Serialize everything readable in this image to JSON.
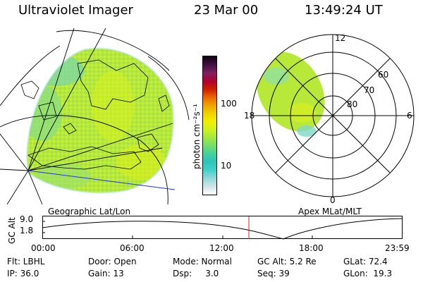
{
  "header": {
    "instrument": "Ultraviolet Imager",
    "date": "23 Mar 00",
    "time": "13:49:24 UT"
  },
  "colorbar": {
    "unit_label": "photon cm⁻²s⁻¹",
    "ticks": [
      "100",
      "10"
    ],
    "colors": [
      "#ffffff",
      "#cfe3e8",
      "#8fd8d8",
      "#3fd0c8",
      "#2ec4b8",
      "#40d0a0",
      "#70dd70",
      "#a0e840",
      "#d0f020",
      "#f0f000",
      "#f0d000",
      "#f0a000",
      "#e86000",
      "#d02000",
      "#b00030",
      "#802060",
      "#401040",
      "#100010"
    ]
  },
  "geo_panel": {
    "caption": "Geographic Lat/Lon"
  },
  "mag_panel": {
    "caption": "Apex MLat/MLT",
    "lat_labels": [
      "60",
      "70",
      "80"
    ],
    "mlt_labels": {
      "top": "12",
      "right": "6",
      "bottom": "0",
      "left": "18"
    }
  },
  "altitude_plot": {
    "ylabel": "GC Alt",
    "yticks": [
      "9.0",
      "1.8"
    ],
    "xticks": [
      "00:00",
      "06:00",
      "12:00",
      "18:00",
      "23:59"
    ],
    "marker_time": "13:49"
  },
  "status": {
    "row1": {
      "flt": "Flt: LBHL",
      "door": "Door: Open",
      "mode": "Mode: Normal",
      "gcalt": "GC Alt: 5.2 Re",
      "glat": "GLat: 72.4"
    },
    "row2": {
      "ip": "IP: 36.0",
      "gain": "Gain: 13",
      "dsp": "Dsp:     3.0",
      "seq": "Seq: 39",
      "glon": "GLon:  19.3"
    }
  }
}
